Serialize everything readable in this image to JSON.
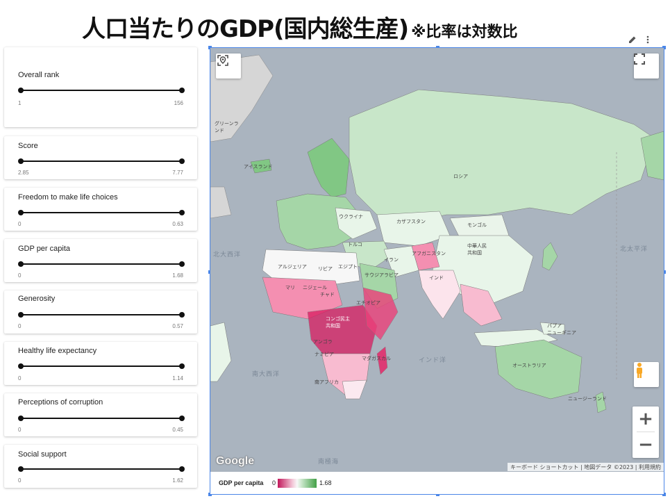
{
  "title": {
    "main": "人口当たりのGDP(国内総生産)",
    "note": "※比率は対数比"
  },
  "filters": [
    {
      "label": "Overall rank",
      "min": "1",
      "max": "156"
    },
    {
      "label": "Score",
      "min": "2.85",
      "max": "7.77"
    },
    {
      "label": "Freedom to make life choices",
      "min": "0",
      "max": "0.63"
    },
    {
      "label": "GDP per capita",
      "min": "0",
      "max": "1.68"
    },
    {
      "label": "Generosity",
      "min": "0",
      "max": "0.57"
    },
    {
      "label": "Healthy life expectancy",
      "min": "0",
      "max": "1.14"
    },
    {
      "label": "Perceptions of corruption",
      "min": "0",
      "max": "0.45"
    },
    {
      "label": "Social support",
      "min": "0",
      "max": "1.62"
    }
  ],
  "map": {
    "labels": {
      "greenland": "グリーンランド",
      "iceland": "アイスランド",
      "russia": "ロシア",
      "kazakhstan": "カザフスタン",
      "mongolia": "モンゴル",
      "china": "中華人民\n共和国",
      "ukraine": "ウクライナ",
      "turkey": "トルコ",
      "iran": "イラン",
      "afghanistan": "アフガニスタン",
      "india": "インド",
      "algeria": "アルジェリア",
      "libya": "リビア",
      "egypt": "エジプト",
      "saudi": "サウジアラビア",
      "mali": "マリ",
      "niger": "ニジェール",
      "chad": "チャド",
      "ethiopia": "エチオピア",
      "drc": "コンゴ民主\n共和国",
      "angola": "アンゴラ",
      "namibia": "ナミビア",
      "madagascar": "マダガスカル",
      "south_africa": "南アフリカ",
      "png": "パプア\nニューギニア",
      "australia": "オーストラリア",
      "nz": "ニュージーランド",
      "atlantic": "南大西洋",
      "indian": "インド洋",
      "pacific": "北太平洋",
      "southern": "南極海",
      "arctic": "北大西洋"
    },
    "attribution": {
      "shortcuts": "キーボード ショートカット",
      "data": "地図データ ©2023",
      "terms": "利用規約"
    },
    "google_logo": "Google"
  },
  "legend": {
    "title": "GDP per capita",
    "min": "0",
    "max": "1.68",
    "color_low": "#c2185b",
    "color_mid": "#f7f7f7",
    "color_high": "#43a047"
  },
  "icons": {
    "edit": "pencil-icon",
    "more": "more-vert-icon",
    "locate": "location-icon",
    "fullscreen": "fullscreen-icon",
    "pegman": "pegman-icon",
    "zoom_in": "+",
    "zoom_out": "−"
  }
}
